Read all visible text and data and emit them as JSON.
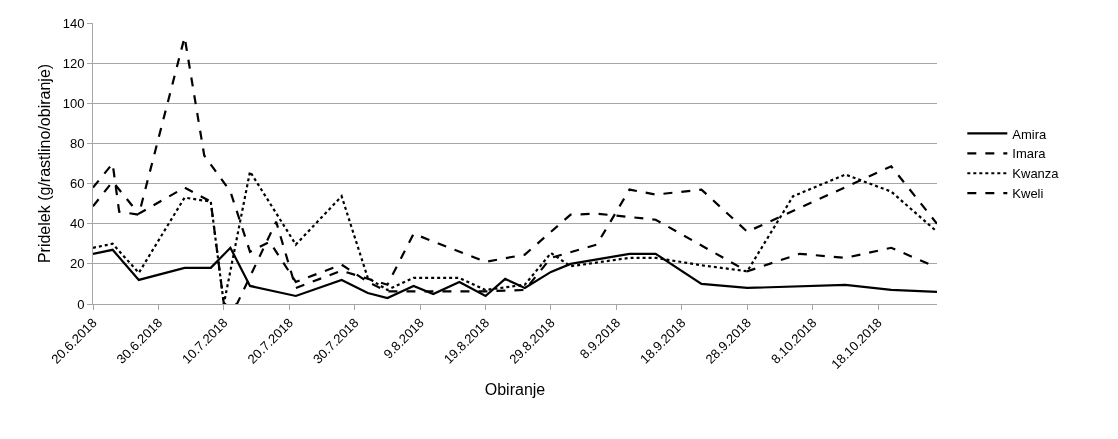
{
  "chart_data": {
    "type": "line",
    "xlabel": "Obiranje",
    "ylabel": "Pridelek (g/rastlino/obiranje)",
    "xlim": [
      "2018-06-20",
      "2018-10-27"
    ],
    "xticks": [
      {
        "value": "2018-06-20",
        "label": "20.6.2018"
      },
      {
        "value": "2018-06-30",
        "label": "30.6.2018"
      },
      {
        "value": "2018-07-10",
        "label": "10.7.2018"
      },
      {
        "value": "2018-07-20",
        "label": "20.7.2018"
      },
      {
        "value": "2018-07-30",
        "label": "30.7.2018"
      },
      {
        "value": "2018-08-09",
        "label": "9.8.2018"
      },
      {
        "value": "2018-08-19",
        "label": "19.8.2018"
      },
      {
        "value": "2018-08-29",
        "label": "29.8.2018"
      },
      {
        "value": "2018-09-08",
        "label": "8.9.2018"
      },
      {
        "value": "2018-09-18",
        "label": "18.9.2018"
      },
      {
        "value": "2018-09-28",
        "label": "28.9.2018"
      },
      {
        "value": "2018-10-08",
        "label": "8.10.2018"
      },
      {
        "value": "2018-10-18",
        "label": "18.10.2018"
      }
    ],
    "ylim": [
      0,
      140
    ],
    "yticks": [
      0,
      20,
      40,
      60,
      80,
      100,
      120,
      140
    ],
    "grid": "y",
    "legend": "right",
    "marker": "none",
    "series": [
      {
        "name": "Amira",
        "color": "#000000",
        "line_style": "solid",
        "x": [
          "2018-06-20",
          "2018-06-23",
          "2018-06-27",
          "2018-07-04",
          "2018-07-08",
          "2018-07-11",
          "2018-07-14",
          "2018-07-21",
          "2018-07-28",
          "2018-08-01",
          "2018-08-04",
          "2018-08-08",
          "2018-08-11",
          "2018-08-15",
          "2018-08-19",
          "2018-08-22",
          "2018-08-25",
          "2018-08-29",
          "2018-09-01",
          "2018-09-10",
          "2018-09-14",
          "2018-09-21",
          "2018-09-28",
          "2018-10-13",
          "2018-10-20",
          "2018-10-27"
        ],
        "values": [
          25,
          27,
          12,
          18,
          18,
          28,
          9,
          4,
          12,
          5.5,
          3,
          9,
          5,
          11,
          4,
          12.5,
          8,
          16,
          20,
          25,
          25,
          10,
          8,
          9.5,
          7,
          6
        ]
      },
      {
        "name": "Imara",
        "color": "#000000",
        "line_style": "dashed",
        "x": [
          "2018-06-20",
          "2018-06-23",
          "2018-06-24",
          "2018-06-27",
          "2018-07-04",
          "2018-07-07",
          "2018-07-11",
          "2018-07-14",
          "2018-07-17",
          "2018-07-21",
          "2018-07-28",
          "2018-08-01",
          "2018-08-04",
          "2018-08-12",
          "2018-08-19",
          "2018-08-25",
          "2018-08-29",
          "2018-09-05",
          "2018-09-10",
          "2018-09-14",
          "2018-09-21",
          "2018-09-28",
          "2018-10-20",
          "2018-10-27"
        ],
        "values": [
          58,
          70,
          46,
          44.5,
          133,
          74,
          56,
          26,
          31,
          11,
          19.6,
          11,
          6.3,
          6.3,
          6.3,
          7,
          23,
          29.6,
          57,
          54.5,
          57,
          36,
          68.6,
          40
        ]
      },
      {
        "name": "Kwanza",
        "color": "#000000",
        "line_style": "dotted",
        "x": [
          "2018-06-20",
          "2018-06-23",
          "2018-06-27",
          "2018-07-04",
          "2018-07-08",
          "2018-07-10",
          "2018-07-14",
          "2018-07-21",
          "2018-07-28",
          "2018-08-01",
          "2018-08-04",
          "2018-08-08",
          "2018-08-15",
          "2018-08-19",
          "2018-08-25",
          "2018-08-29",
          "2018-09-01",
          "2018-09-10",
          "2018-09-14",
          "2018-09-21",
          "2018-09-28",
          "2018-10-05",
          "2018-10-13",
          "2018-10-20",
          "2018-10-27"
        ],
        "values": [
          28,
          30,
          15.5,
          53,
          51,
          0,
          66,
          29.6,
          53.7,
          13,
          7,
          13,
          13,
          7,
          9.6,
          25.4,
          18.8,
          23,
          23,
          19.3,
          16.3,
          53.7,
          64.5,
          56,
          36
        ]
      },
      {
        "name": "Kweli",
        "color": "#000000",
        "line_style": "dashed",
        "x": [
          "2018-06-20",
          "2018-06-23",
          "2018-06-27",
          "2018-07-04",
          "2018-07-08",
          "2018-07-10",
          "2018-07-12",
          "2018-07-18",
          "2018-07-21",
          "2018-07-28",
          "2018-08-04",
          "2018-08-08",
          "2018-08-19",
          "2018-08-25",
          "2018-09-01",
          "2018-09-05",
          "2018-09-14",
          "2018-09-28",
          "2018-10-06",
          "2018-10-13",
          "2018-10-20",
          "2018-10-26"
        ],
        "values": [
          48.7,
          61,
          45,
          58,
          51,
          0,
          0,
          41,
          8,
          16.6,
          9.6,
          35,
          21,
          24.6,
          44.5,
          45,
          42,
          16.3,
          25,
          23,
          28,
          19.6
        ]
      }
    ]
  }
}
